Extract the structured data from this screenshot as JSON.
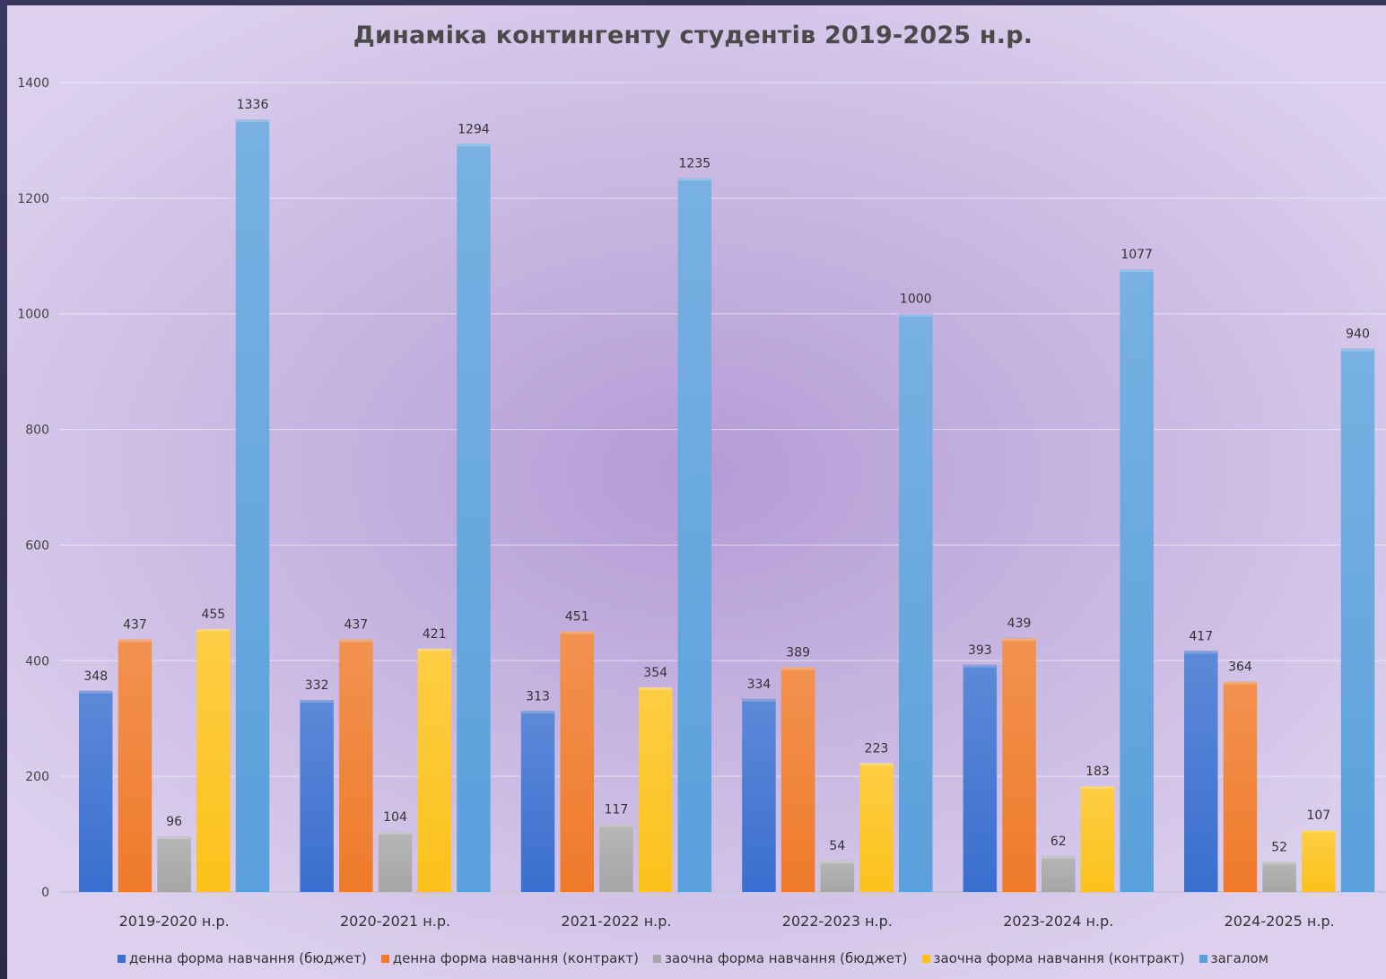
{
  "chart_data": {
    "type": "bar",
    "title": "Динаміка контингенту студентів 2019-2025 н.р.",
    "categories": [
      "2019-2020 н.р.",
      "2020-2021 н.р.",
      "2021-2022 н.р.",
      "2022-2023 н.р.",
      "2023-2024 н.р.",
      "2024-2025 н.р."
    ],
    "series": [
      {
        "name": "денна форма навчання (бюджет)",
        "color": "#3a6fcf",
        "values": [
          348,
          332,
          313,
          334,
          393,
          417
        ]
      },
      {
        "name": "денна форма навчання (контракт)",
        "color": "#ef7a2a",
        "values": [
          437,
          437,
          451,
          389,
          439,
          364
        ]
      },
      {
        "name": "заочна форма навчання (бюджет)",
        "color": "#a6a6a6",
        "values": [
          96,
          104,
          117,
          54,
          62,
          52
        ]
      },
      {
        "name": "заочна форма навчання (контракт)",
        "color": "#fcc21b",
        "values": [
          455,
          421,
          354,
          223,
          183,
          107
        ]
      },
      {
        "name": "загалом",
        "color": "#5aa0dc",
        "values": [
          1336,
          1294,
          1235,
          1000,
          1077,
          940
        ]
      }
    ],
    "yticks": [
      "0",
      "200",
      "400",
      "600",
      "800",
      "1000",
      "1200",
      "1400"
    ],
    "ylim": [
      0,
      1400
    ],
    "grid": true,
    "legend_position": "bottom"
  }
}
